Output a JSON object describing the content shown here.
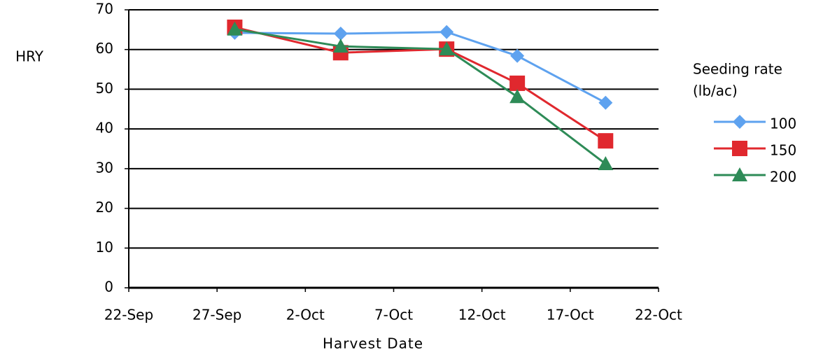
{
  "chart_data": {
    "type": "line",
    "x_label": "Harvest Date",
    "y_label": "HRY",
    "legend_title": [
      "Seeding rate",
      "(lb/ac)"
    ],
    "legend": "right",
    "grid": true,
    "x": [
      "28-Sep",
      "4-Oct",
      "10-Oct",
      "14-Oct",
      "19-Oct"
    ],
    "series": [
      {
        "name": "100",
        "color": "#5ea2ef",
        "marker": "diamond",
        "values": [
          64.2,
          64.0,
          64.4,
          58.4,
          46.6
        ]
      },
      {
        "name": "150",
        "color": "#e0282e",
        "marker": "square",
        "values": [
          65.6,
          59.2,
          60.1,
          51.5,
          37.0
        ]
      },
      {
        "name": "200",
        "color": "#2e8b57",
        "marker": "triangle",
        "values": [
          65.1,
          60.8,
          60.1,
          48.1,
          31.2
        ]
      }
    ],
    "xlim": [
      "22-Sep",
      "22-Oct"
    ],
    "xticks": [
      "22-Sep",
      "27-Sep",
      "2-Oct",
      "7-Oct",
      "12-Oct",
      "17-Oct",
      "22-Oct"
    ],
    "ylim": [
      0,
      70
    ],
    "yticks": [
      0,
      10,
      20,
      30,
      40,
      50,
      60,
      70
    ]
  }
}
